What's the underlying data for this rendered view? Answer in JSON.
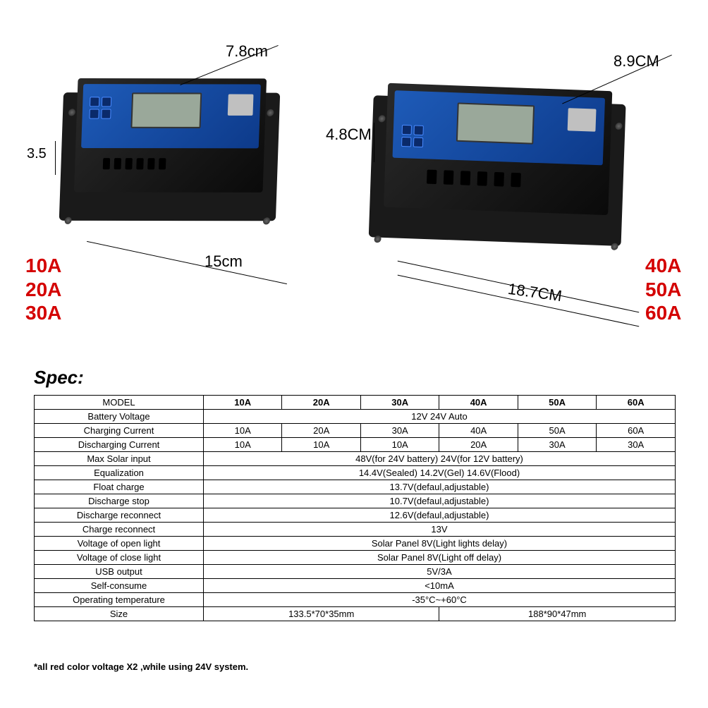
{
  "left_device": {
    "dim_top": "7.8cm",
    "dim_left": "3.5",
    "dim_bottom": "15cm",
    "ratings": [
      "10A",
      "20A",
      "30A"
    ]
  },
  "right_device": {
    "dim_top": "8.9CM",
    "dim_left": "4.8CM",
    "dim_bottom": "18.7CM",
    "ratings": [
      "40A",
      "50A",
      "60A"
    ]
  },
  "colors": {
    "rating_text": "#d40000",
    "device_blue": "#1e5bb8",
    "device_black": "#1a1a1a",
    "lcd": "#9aa89a"
  },
  "spec_title": "Spec:",
  "table": {
    "header_label": "MODEL",
    "models": [
      "10A",
      "20A",
      "30A",
      "40A",
      "50A",
      "60A"
    ],
    "rows": [
      {
        "label": "Battery Voltage",
        "type": "span",
        "value": "12V 24V Auto"
      },
      {
        "label": "Charging  Current",
        "type": "cells",
        "values": [
          "10A",
          "20A",
          "30A",
          "40A",
          "50A",
          "60A"
        ]
      },
      {
        "label": "Discharging  Current",
        "type": "cells",
        "values": [
          "10A",
          "10A",
          "10A",
          "20A",
          "30A",
          "30A"
        ]
      },
      {
        "label": "Max Solar input",
        "type": "span",
        "value": "48V(for 24V battery) 24V(for 12V battery)"
      },
      {
        "label": "Equalization",
        "type": "span",
        "value": "14.4V(Sealed) 14.2V(Gel) 14.6V(Flood)"
      },
      {
        "label": "Float charge",
        "type": "span",
        "value": "13.7V(defaul,adjustable)"
      },
      {
        "label": "Discharge stop",
        "type": "span",
        "value": "10.7V(defaul,adjustable)"
      },
      {
        "label": "Discharge reconnect",
        "type": "span",
        "value": "12.6V(defaul,adjustable)"
      },
      {
        "label": "Charge reconnect",
        "type": "span",
        "value": "13V"
      },
      {
        "label": "Voltage of open light",
        "type": "span",
        "value": "Solar Panel 8V(Light lights delay)"
      },
      {
        "label": "Voltage of close light",
        "type": "span",
        "value": "Solar Panel 8V(Light off delay)"
      },
      {
        "label": "USB output",
        "type": "span",
        "value": "5V/3A"
      },
      {
        "label": "Self-consume",
        "type": "span",
        "value": "<10mA"
      },
      {
        "label": "Operating temperature",
        "type": "span",
        "value": "-35°C~+60°C"
      },
      {
        "label": "Size",
        "type": "split",
        "left": "133.5*70*35mm",
        "right": "188*90*47mm"
      }
    ]
  },
  "footnote": "*all red color voltage X2 ,while using 24V system."
}
